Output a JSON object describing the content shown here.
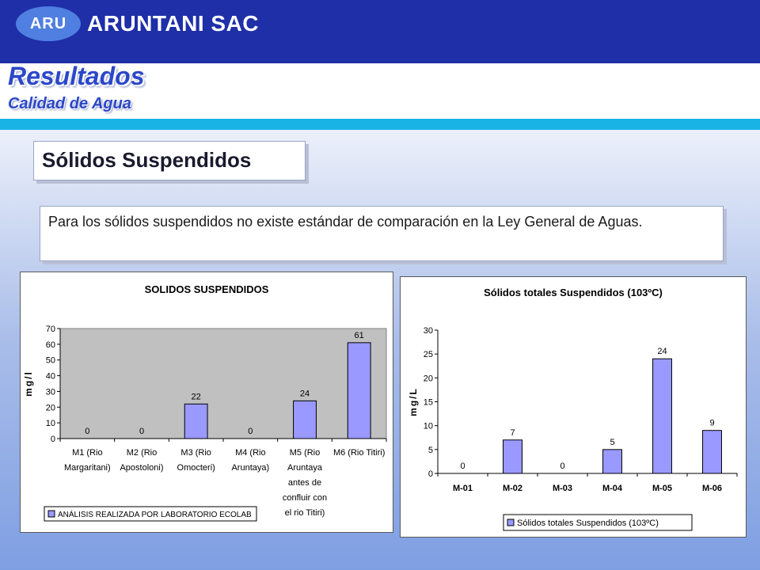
{
  "header": {
    "logo_text": "ARU",
    "company": "ARUNTANI SAC",
    "title": "Resultados",
    "subtitle": "Calidad de Agua"
  },
  "section": {
    "heading": "Sólidos Suspendidos"
  },
  "description": "Para los sólidos suspendidos no existe estándar de comparación en la Ley General de Aguas.",
  "colors": {
    "header_bg": "#1f2fa8",
    "accent_cyan": "#19b3e6",
    "title_blue": "#2b47c9",
    "bar_fill": "#9999ff"
  },
  "chart_data": [
    {
      "type": "bar",
      "title": "SOLIDOS SUSPENDIDOS",
      "ylabel": "mg/l",
      "xlabel": "",
      "ylim": [
        0,
        70
      ],
      "yticks": [
        0,
        10,
        20,
        30,
        40,
        50,
        60,
        70
      ],
      "categories": [
        [
          "M1 (Rio",
          "Margaritani)"
        ],
        [
          "M2 (Rio",
          "Apostoloni)"
        ],
        [
          "M3 (Rio",
          "Omocteri)"
        ],
        [
          "M4 (Rio",
          "Aruntaya)"
        ],
        [
          "M5 (Rio",
          "Aruntaya",
          "antes de",
          "confluir con",
          "el rio Titiri)"
        ],
        [
          "M6 (Rio Titiri)"
        ]
      ],
      "series": [
        {
          "name": "ANÁLISIS REALIZADA POR LABORATORIO ECOLAB",
          "values": [
            0,
            0,
            22,
            0,
            24,
            61
          ]
        }
      ],
      "data_labels": [
        "0",
        "0",
        "22",
        "0",
        "24",
        "61"
      ],
      "grid": false,
      "plot_background": "gray",
      "legend": "bottom"
    },
    {
      "type": "bar",
      "title": "Sólidos totales Suspendidos (103ºC)",
      "ylabel": "mg/L",
      "xlabel": "",
      "ylim": [
        0,
        30
      ],
      "yticks": [
        0,
        5,
        10,
        15,
        20,
        25,
        30
      ],
      "categories": [
        [
          "M-01"
        ],
        [
          "M-02"
        ],
        [
          "M-03"
        ],
        [
          "M-04"
        ],
        [
          "M-05"
        ],
        [
          "M-06"
        ]
      ],
      "series": [
        {
          "name": "Sólidos totales Suspendidos (103ºC)",
          "values": [
            0,
            7,
            0,
            5,
            24,
            9
          ]
        }
      ],
      "data_labels": [
        "0",
        "7",
        "0",
        "5",
        "24",
        "9"
      ],
      "grid": false,
      "plot_background": "white",
      "legend": "bottom"
    }
  ]
}
